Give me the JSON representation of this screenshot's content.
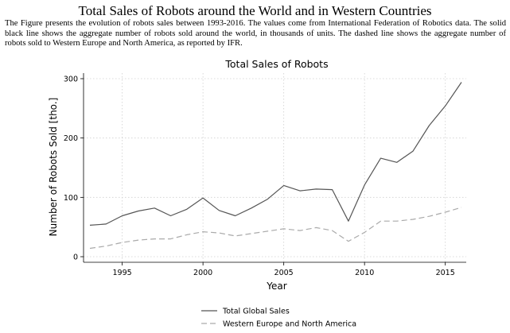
{
  "figure": {
    "title": "Total Sales of Robots around the World and in Western Countries",
    "caption": "The Figure presents the evolution of robots sales between 1993-2016. The values come from International Federation of Robotics data. The solid black line shows the aggregate number of robots sold around the world, in thousands of units.  The dashed line shows the aggregate number of robots sold to Western Europe and North America, as reported by IFR."
  },
  "chart_data": {
    "type": "line",
    "title": "Total Sales of Robots",
    "xlabel": "Year",
    "ylabel": "Number of Robots Sold [tho.]",
    "xlim": [
      1993,
      2016
    ],
    "ylim": [
      0,
      300
    ],
    "xticks": [
      1995,
      2000,
      2005,
      2010,
      2015
    ],
    "yticks": [
      0,
      100,
      200,
      300
    ],
    "grid": true,
    "legend": "bottom",
    "x": [
      1993,
      1994,
      1995,
      1996,
      1997,
      1998,
      1999,
      2000,
      2001,
      2002,
      2003,
      2004,
      2005,
      2006,
      2007,
      2008,
      2009,
      2010,
      2011,
      2012,
      2013,
      2014,
      2015,
      2016
    ],
    "series": [
      {
        "name": "Total Global Sales",
        "style": "solid",
        "color": "#555555",
        "values": [
          53,
          55,
          69,
          77,
          82,
          69,
          80,
          99,
          78,
          69,
          82,
          97,
          120,
          111,
          114,
          113,
          60,
          121,
          166,
          159,
          178,
          221,
          254,
          294
        ]
      },
      {
        "name": "Western Europe and North America",
        "style": "dashed",
        "color": "#aaaaaa",
        "values": [
          14,
          18,
          24,
          28,
          30,
          30,
          37,
          42,
          40,
          35,
          39,
          43,
          47,
          44,
          49,
          44,
          26,
          41,
          60,
          60,
          63,
          68,
          75,
          83
        ]
      }
    ]
  }
}
